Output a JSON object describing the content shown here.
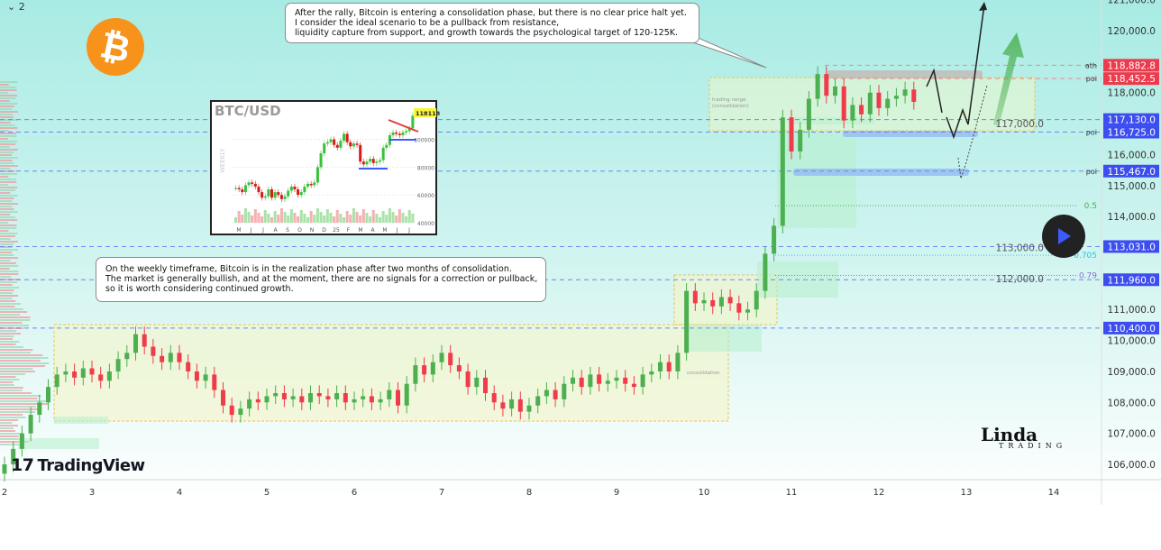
{
  "header": {
    "timeframe_toggle": "⌄ 2"
  },
  "notes": {
    "top": [
      "After the rally, Bitcoin is entering a consolidation phase, but there is no clear price halt yet.",
      "I consider the ideal scenario to be a pullback from resistance,",
      "liquidity capture from support, and growth towards the psychological target of 120-125K."
    ],
    "middle": [
      "On the weekly timeframe, Bitcoin is in the realization phase after two months of consolidation.",
      "The market is generally bullish, and at the moment, there are no signals for a correction or pullback,",
      "so it is worth considering continued growth."
    ]
  },
  "branding": {
    "tradingview": "TradingView",
    "author_logo": "Linda TRADING",
    "author_name": "Linda",
    "author_sub": "TRADING"
  },
  "icons": {
    "coin": "bitcoin-icon",
    "play": "play-icon",
    "tv": "tradingview-logo"
  },
  "colors": {
    "up": "#4caf50",
    "down": "#ef3b4a",
    "blue_label": "#3d4ef0",
    "red_label": "#ee3a4d",
    "accent_btc": "#f7931a",
    "fib_05": "#4caf50",
    "fib_0705": "#26c6da",
    "fib_079": "#8e6fd0"
  },
  "chart_data": [
    {
      "type": "candlestick",
      "title": "",
      "x_ticks": [
        "2",
        "3",
        "4",
        "5",
        "6",
        "7",
        "8",
        "9",
        "10",
        "11",
        "12",
        "13",
        "14"
      ],
      "xlim": [
        2,
        14.6
      ],
      "y_ticks": [
        "106,000.0",
        "107,000.0",
        "108,000.0",
        "109,000.0",
        "110,000.0",
        "111,000.0",
        "112,000.0",
        "113,000.0",
        "114,000.0",
        "115,000.0",
        "116,000.0",
        "117,000.0",
        "118,000.0",
        "120,000.0",
        "121,000.0"
      ],
      "ylim": [
        105500,
        121000
      ],
      "x_start": 2.0,
      "x_step": 0.1,
      "closes": [
        106.0,
        106.5,
        107.0,
        107.6,
        108.0,
        108.5,
        108.9,
        109.0,
        108.8,
        109.1,
        108.9,
        108.7,
        109.0,
        109.4,
        109.6,
        110.2,
        109.8,
        109.5,
        109.3,
        109.6,
        109.3,
        109.0,
        108.7,
        108.9,
        108.4,
        107.9,
        107.6,
        107.8,
        108.1,
        108.0,
        108.2,
        108.3,
        108.1,
        108.2,
        108.0,
        108.3,
        108.2,
        108.1,
        108.3,
        108.0,
        108.1,
        108.2,
        108.0,
        108.1,
        108.4,
        107.9,
        108.6,
        109.2,
        108.9,
        109.3,
        109.6,
        109.2,
        109.0,
        108.5,
        108.8,
        108.3,
        108.0,
        107.8,
        108.1,
        107.7,
        107.9,
        108.2,
        108.4,
        108.1,
        108.6,
        108.8,
        108.5,
        108.9,
        108.6,
        108.7,
        108.8,
        108.6,
        108.5,
        108.9,
        109.0,
        109.3,
        109.0,
        109.6,
        111.6,
        111.2,
        111.3,
        111.1,
        111.4,
        111.2,
        110.9,
        111.0,
        111.6,
        112.8,
        113.7,
        117.2,
        116.1,
        116.8,
        117.8,
        118.6,
        117.9,
        118.2,
        117.1,
        117.6,
        117.3,
        118.0,
        117.5,
        117.8,
        117.9,
        118.1,
        117.7
      ],
      "close_unit": "thousand USD",
      "price_levels": [
        {
          "value": 118882.8,
          "label": "118,882.8",
          "tag": "ath",
          "color": "red"
        },
        {
          "value": 118452.5,
          "label": "118,452.5",
          "tag": "poi",
          "color": "red"
        },
        {
          "value": 117130.0,
          "label": "117,130.0",
          "tag": "",
          "color": "blue"
        },
        {
          "value": 116725.0,
          "label": "116,725.0",
          "tag": "poi",
          "color": "blue"
        },
        {
          "value": 115467.0,
          "label": "115,467.0",
          "tag": "poi",
          "color": "blue"
        },
        {
          "value": 113031.0,
          "label": "113,031.0",
          "tag": "",
          "color": "blue"
        },
        {
          "value": 111960.0,
          "label": "111,960.0",
          "tag": "",
          "color": "blue"
        },
        {
          "value": 110400.0,
          "label": "110,400.0",
          "tag": "",
          "color": "blue"
        }
      ],
      "fib_levels": [
        {
          "label": "0.5",
          "value": 114350
        },
        {
          "label": "0.705",
          "value": 112750
        },
        {
          "label": "0.79",
          "value": 112100
        }
      ],
      "zone_labels": {
        "trading_range": [
          "trading range",
          "(consolidation)"
        ],
        "consolidation": "consolidation"
      }
    },
    {
      "type": "candlestick",
      "title": "BTC/USD",
      "side_label": "WEEKLY",
      "price_tag": "118118",
      "x_ticks": [
        "M",
        "J",
        "J",
        "A",
        "S",
        "O",
        "N",
        "D",
        "25",
        "F",
        "M",
        "A",
        "M",
        "J",
        "J"
      ],
      "y_ticks": [
        "40000",
        "60000",
        "80000",
        "100000"
      ],
      "ylim": [
        40000,
        120000
      ],
      "closes": [
        65,
        64,
        62,
        67,
        69,
        68,
        66,
        62,
        58,
        59,
        64,
        58,
        62,
        60,
        57,
        59,
        63,
        66,
        64,
        60,
        62,
        66,
        68,
        67,
        69,
        80,
        90,
        97,
        98,
        100,
        96,
        94,
        99,
        104,
        98,
        95,
        97,
        96,
        84,
        82,
        84,
        86,
        83,
        84,
        85,
        94,
        96,
        103,
        105,
        104,
        103,
        105,
        106,
        108,
        117
      ],
      "close_unit": "thousand USD"
    }
  ]
}
